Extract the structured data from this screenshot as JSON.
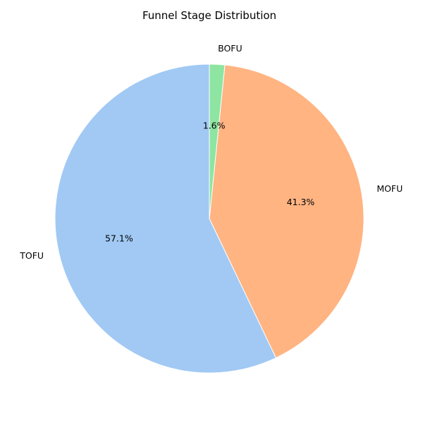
{
  "chart_data": {
    "type": "pie",
    "title": "Funnel Stage Distribution",
    "categories": [
      "TOFU",
      "MOFU",
      "BOFU"
    ],
    "values": [
      57.1,
      41.3,
      1.6
    ],
    "percent_labels": [
      "57.1%",
      "41.3%",
      "1.6%"
    ],
    "colors": [
      "#a1c9f4",
      "#ffb482",
      "#8de5a1"
    ],
    "start_angle_deg": 90,
    "direction": "counterclockwise",
    "edge_color": "#ffffff"
  }
}
